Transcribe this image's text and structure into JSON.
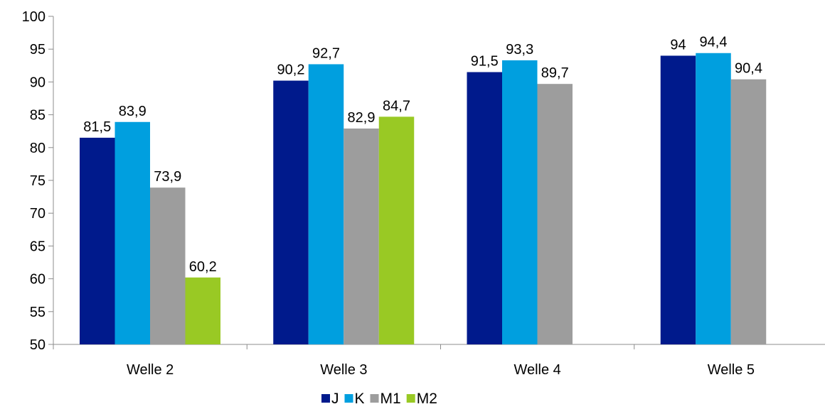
{
  "chart_data": {
    "type": "bar",
    "title": "",
    "xlabel": "",
    "ylabel": "",
    "ylim": [
      50,
      100
    ],
    "y_ticks": [
      "50",
      "55",
      "60",
      "65",
      "70",
      "75",
      "80",
      "85",
      "90",
      "95",
      "100"
    ],
    "categories": [
      "Welle 2",
      "Welle 3",
      "Welle 4",
      "Welle 5"
    ],
    "series": [
      {
        "name": "J",
        "color": "#001A8C",
        "values": [
          81.5,
          90.2,
          91.5,
          94
        ],
        "labels": [
          "81,5",
          "90,2",
          "91,5",
          "94"
        ]
      },
      {
        "name": "K",
        "color": "#009FDF",
        "values": [
          83.9,
          92.7,
          93.3,
          94.4
        ],
        "labels": [
          "83,9",
          "92,7",
          "93,3",
          "94,4"
        ]
      },
      {
        "name": "M1",
        "color": "#9D9D9D",
        "values": [
          73.9,
          82.9,
          89.7,
          90.4
        ],
        "labels": [
          "73,9",
          "82,9",
          "89,7",
          "90,4"
        ]
      },
      {
        "name": "M2",
        "color": "#99C924",
        "values": [
          60.2,
          84.7,
          null,
          null
        ],
        "labels": [
          "60,2",
          "84,7",
          "",
          ""
        ]
      }
    ],
    "legend": "bottom",
    "grid": false
  }
}
